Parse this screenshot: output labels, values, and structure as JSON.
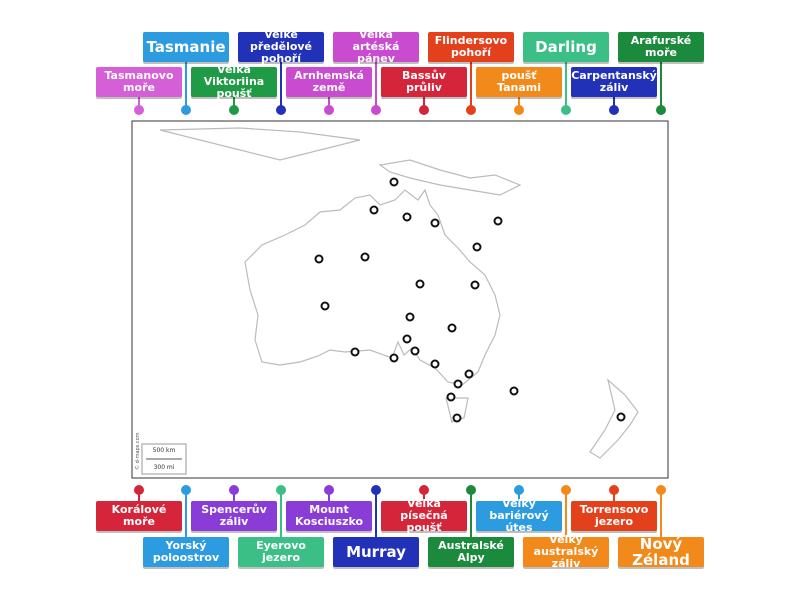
{
  "top_labels": [
    {
      "text": "Tasmanie",
      "color": "#2d9be0"
    },
    {
      "text": "Velké předělové pohoří",
      "color": "#2131b8"
    },
    {
      "text": "Velká artéská pánev",
      "color": "#c84bd0"
    },
    {
      "text": "Flindersovo pohoří",
      "color": "#e3401c"
    },
    {
      "text": "Darling",
      "color": "#3bbf87"
    },
    {
      "text": "Arafurské moře",
      "color": "#1c8a3c"
    },
    {
      "text": "Tasmanovo moře",
      "color": "#d45fd6"
    },
    {
      "text": "Velká Viktoriina poušť",
      "color": "#1f9b45"
    },
    {
      "text": "Arnhemská země",
      "color": "#c84bd0"
    },
    {
      "text": "Bassův průliv",
      "color": "#d5253a"
    },
    {
      "text": "poušť Tanami",
      "color": "#f28a1b"
    },
    {
      "text": "Carpentanský záliv",
      "color": "#2131b8"
    }
  ],
  "bottom_labels": [
    {
      "text": "Korálové moře",
      "color": "#d5253a"
    },
    {
      "text": "Spencerův záliv",
      "color": "#8a3cd6"
    },
    {
      "text": "Mount Kosciuszko",
      "color": "#8a3cd6"
    },
    {
      "text": "Velká písečná poušť",
      "color": "#d5253a"
    },
    {
      "text": "Velký bariérový útes",
      "color": "#2d9be0"
    },
    {
      "text": "Torrensovo jezero",
      "color": "#e3401c"
    },
    {
      "text": "Yorský poloostrov",
      "color": "#2d9be0"
    },
    {
      "text": "Eyerovo jezero",
      "color": "#3bbf87"
    },
    {
      "text": "Murray",
      "color": "#2131b8"
    },
    {
      "text": "Australské Alpy",
      "color": "#1c8a3c"
    },
    {
      "text": "Velký australský záliv",
      "color": "#f28a1b"
    },
    {
      "text": "Nový Zéland",
      "color": "#f28a1b"
    }
  ],
  "map": {
    "credit": "© d-maps.com",
    "scale_km": "500 km",
    "scale_mi": "300 mi"
  }
}
